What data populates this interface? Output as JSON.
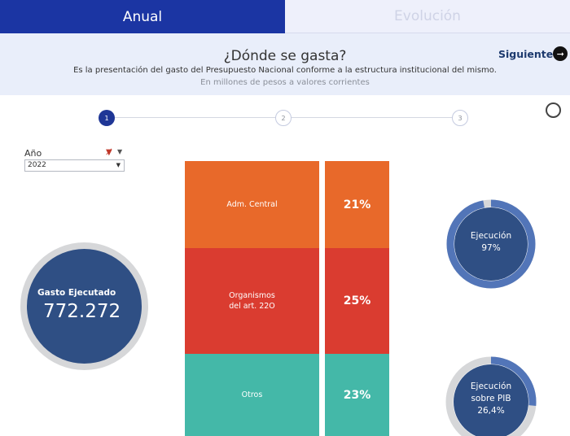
{
  "tabs": [
    {
      "label": "Anual",
      "active": true
    },
    {
      "label": "Evolución",
      "active": false
    }
  ],
  "header": {
    "title": "¿Dónde se gasta?",
    "description": "Es la presentación del gasto del Presupuesto Nacional conforme a la estructura institucional del mismo.",
    "units": "En millones de pesos a valores corrientes",
    "next_label": "Siguiente"
  },
  "stepper": {
    "steps": [
      "1",
      "2",
      "3"
    ],
    "current": 1
  },
  "filter": {
    "label": "Año",
    "selected": "2022"
  },
  "gasto": {
    "label": "Gasto Ejecutado",
    "value": "772.272"
  },
  "segments": [
    {
      "name": "Adm. Central",
      "pct": "21%",
      "color": "#e8692a"
    },
    {
      "name": "Organismos del art. 22O",
      "name_lines": [
        "Organismos",
        "del art. 22O"
      ],
      "pct": "25%",
      "color": "#da3c30"
    },
    {
      "name": "Otros",
      "pct": "23%",
      "color": "#44b8a8"
    }
  ],
  "gauges": [
    {
      "label_lines": [
        "Ejecución",
        "97%"
      ],
      "fraction": 0.97
    },
    {
      "label_lines": [
        "Ejecución",
        "sobre PIB",
        "26,4%"
      ],
      "fraction": 0.264
    }
  ],
  "colors": {
    "tab_active": "#1b35a3",
    "gauge_fill": "#2f4f84",
    "gauge_arc": "#5275b8",
    "gauge_track": "#d6d7d9"
  }
}
